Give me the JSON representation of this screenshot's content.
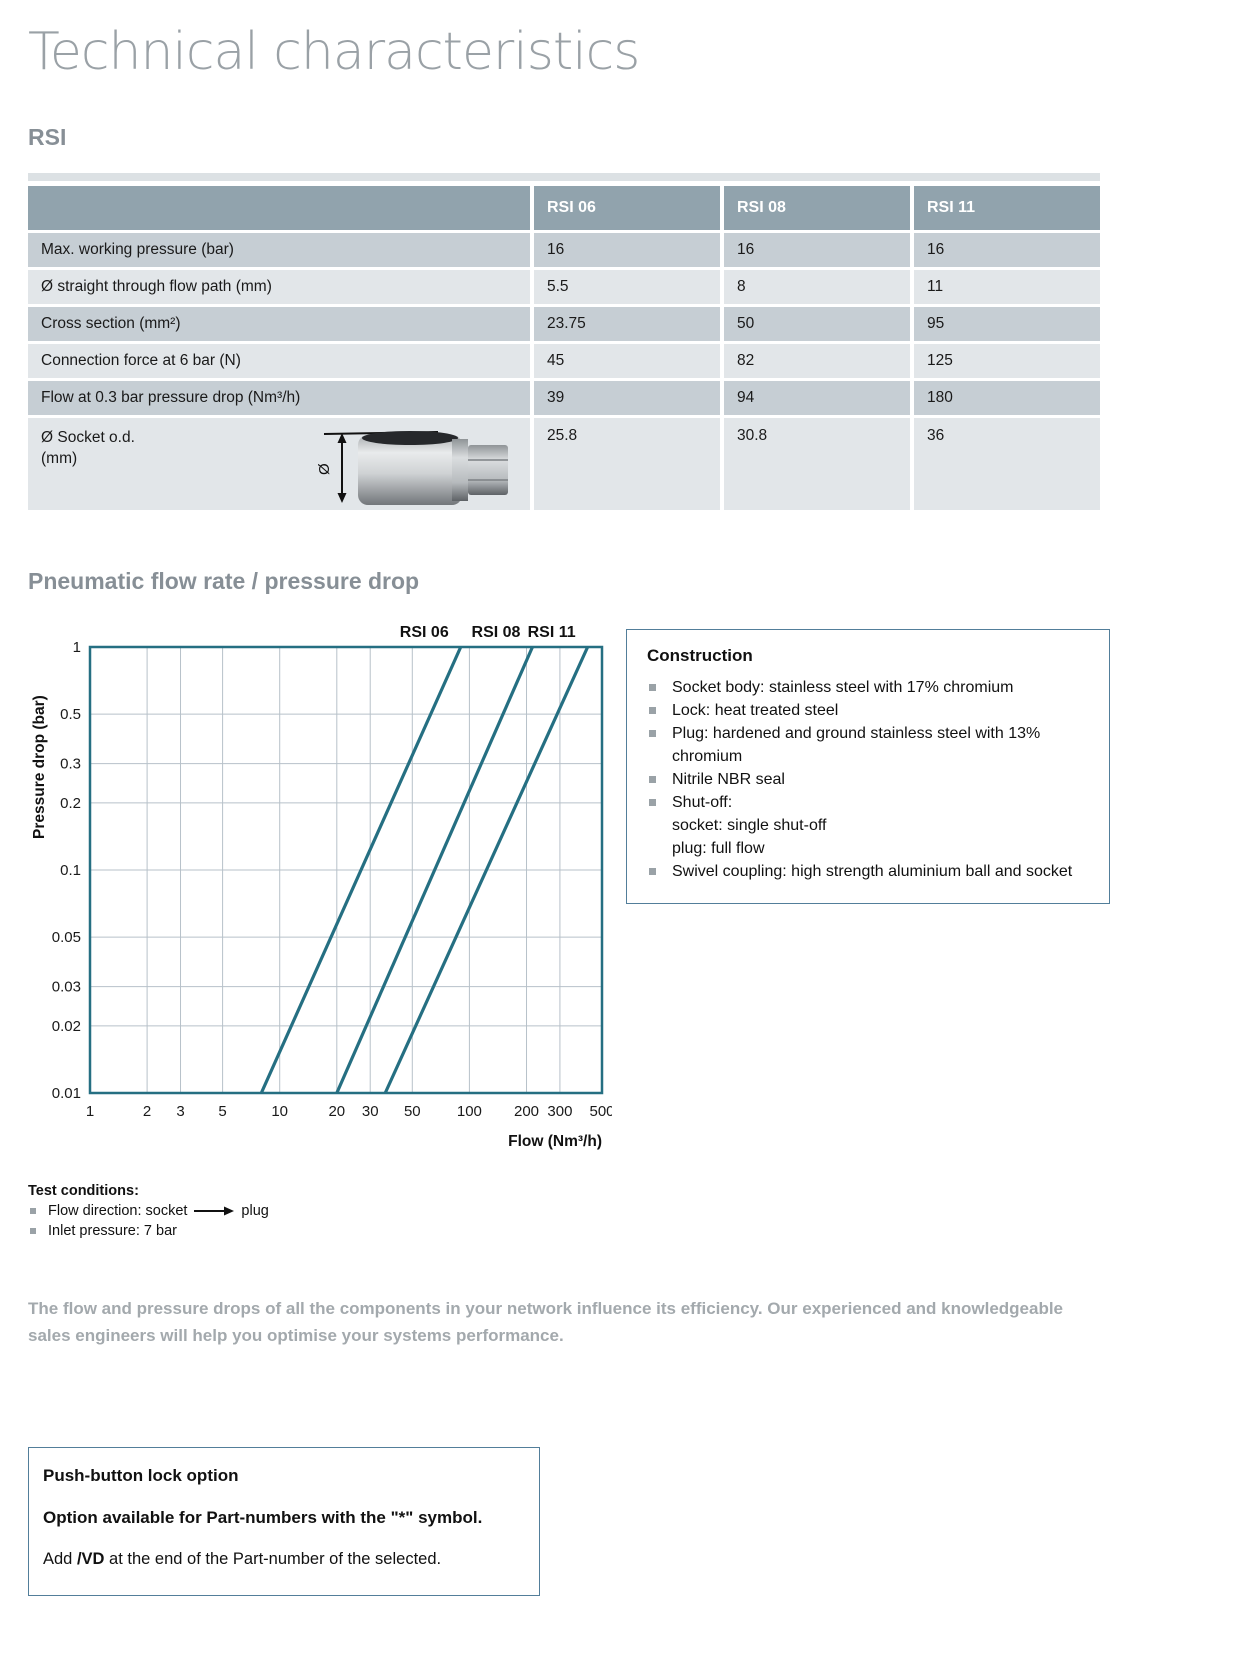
{
  "page": {
    "title": "Technical characteristics",
    "product_heading": "RSI",
    "chart_heading": "Pneumatic flow rate / pressure drop"
  },
  "spec_table": {
    "columns": [
      "RSI 06",
      "RSI 08",
      "RSI 11"
    ],
    "rows": [
      {
        "label": "Max. working pressure (bar)",
        "values": [
          "16",
          "16",
          "16"
        ]
      },
      {
        "label": "Ø straight through flow path (mm)",
        "values": [
          "5.5",
          "8",
          "11"
        ]
      },
      {
        "label": "Cross section (mm²)",
        "values": [
          "23.75",
          "50",
          "95"
        ]
      },
      {
        "label": "Connection force at 6 bar (N)",
        "values": [
          "45",
          "82",
          "125"
        ]
      },
      {
        "label": "Flow at 0.3 bar pressure drop (Nm³/h)",
        "values": [
          "39",
          "94",
          "180"
        ]
      },
      {
        "label": "Ø Socket o.d.",
        "label_line2": "(mm)",
        "diameter_symbol": "Ø",
        "values": [
          "25.8",
          "30.8",
          "36"
        ]
      }
    ]
  },
  "chart_data": {
    "type": "line",
    "title": "Pneumatic flow rate / pressure drop",
    "xlabel": "Flow (Nm³/h)",
    "ylabel": "Pressure drop (bar)",
    "xscale": "log",
    "yscale": "log",
    "xlim": [
      1,
      500
    ],
    "ylim": [
      0.01,
      1
    ],
    "xticks": [
      1,
      2,
      3,
      5,
      10,
      20,
      30,
      50,
      100,
      200,
      300,
      500
    ],
    "yticks": [
      1,
      0.5,
      0.3,
      0.2,
      0.1,
      0.05,
      0.03,
      0.02,
      0.01
    ],
    "grid": true,
    "legend_position": "top",
    "line_color": "#256f82",
    "grid_color": "#b7c1c9",
    "series": [
      {
        "name": "RSI 06",
        "points": [
          [
            8,
            0.01
          ],
          [
            90,
            1
          ]
        ]
      },
      {
        "name": "RSI 08",
        "points": [
          [
            20,
            0.01
          ],
          [
            215,
            1
          ]
        ]
      },
      {
        "name": "RSI 11",
        "points": [
          [
            36,
            0.01
          ],
          [
            420,
            1
          ]
        ]
      }
    ]
  },
  "construction": {
    "title": "Construction",
    "items": [
      {
        "bullet": true,
        "text": "Socket body: stainless steel with 17% chromium"
      },
      {
        "bullet": true,
        "text": "Lock: heat treated steel"
      },
      {
        "bullet": true,
        "text": "Plug: hardened and ground stainless steel with 13% chromium"
      },
      {
        "bullet": true,
        "text": "Nitrile NBR seal"
      },
      {
        "bullet": true,
        "text": "Shut-off:"
      },
      {
        "bullet": false,
        "text": "socket: single shut-off"
      },
      {
        "bullet": false,
        "text": "plug: full flow"
      },
      {
        "bullet": true,
        "text": "Swivel coupling: high strength aluminium ball and socket"
      }
    ]
  },
  "test_conditions": {
    "title": "Test conditions:",
    "item1_prefix": "Flow direction: socket",
    "item1_suffix": "plug",
    "item2": "Inlet pressure: 7 bar"
  },
  "note": "The flow and pressure drops of all the components in your network influence its efficiency. Our experienced and knowledgeable sales engineers will help you optimise your systems performance.",
  "push_button_box": {
    "title": "Push-button lock option",
    "line1": "Option available for Part-numbers with the \"*\" symbol.",
    "line2_prefix": "Add ",
    "line2_bold": "/VD",
    "line2_suffix": " at the end of the Part-number of the selected."
  }
}
